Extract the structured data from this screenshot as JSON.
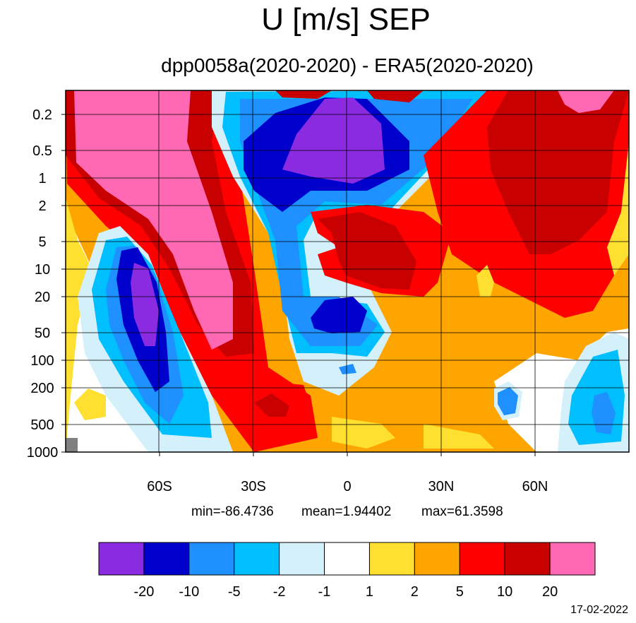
{
  "chart_data": {
    "type": "contour",
    "title": "U [m/s] SEP",
    "subtitle": "dpp0058a(2020-2020) - ERA5(2020-2020)",
    "x_ticks": [
      "60S",
      "30S",
      "0",
      "30N",
      "60N"
    ],
    "x_tick_values": [
      -60,
      -30,
      0,
      30,
      60
    ],
    "xlim": [
      -90,
      90
    ],
    "y_ticks": [
      "0.2",
      "0.5",
      "1",
      "2",
      "5",
      "10",
      "20",
      "50",
      "100",
      "200",
      "500",
      "1000"
    ],
    "y_tick_values": [
      0.2,
      0.5,
      1,
      2,
      5,
      10,
      20,
      50,
      100,
      200,
      500,
      1000
    ],
    "y_scale": "log",
    "y_reversed": true,
    "grid": true,
    "stats": {
      "min": "min=-86.4736",
      "mean": "mean=1.94402",
      "max": "max=61.3598"
    },
    "colorbar": {
      "levels": [
        "-20",
        "-10",
        "-5",
        "-2",
        "-1",
        "1",
        "2",
        "5",
        "10",
        "20"
      ],
      "colors": [
        "#8a2be2",
        "#0000cd",
        "#1e90ff",
        "#00bfff",
        "#d4f1fb",
        "#ffffff",
        "#ffdf30",
        "#ffa500",
        "#ff0000",
        "#c80000",
        "#ff69b4"
      ]
    }
  },
  "footer": {
    "date": "17-02-2022"
  }
}
